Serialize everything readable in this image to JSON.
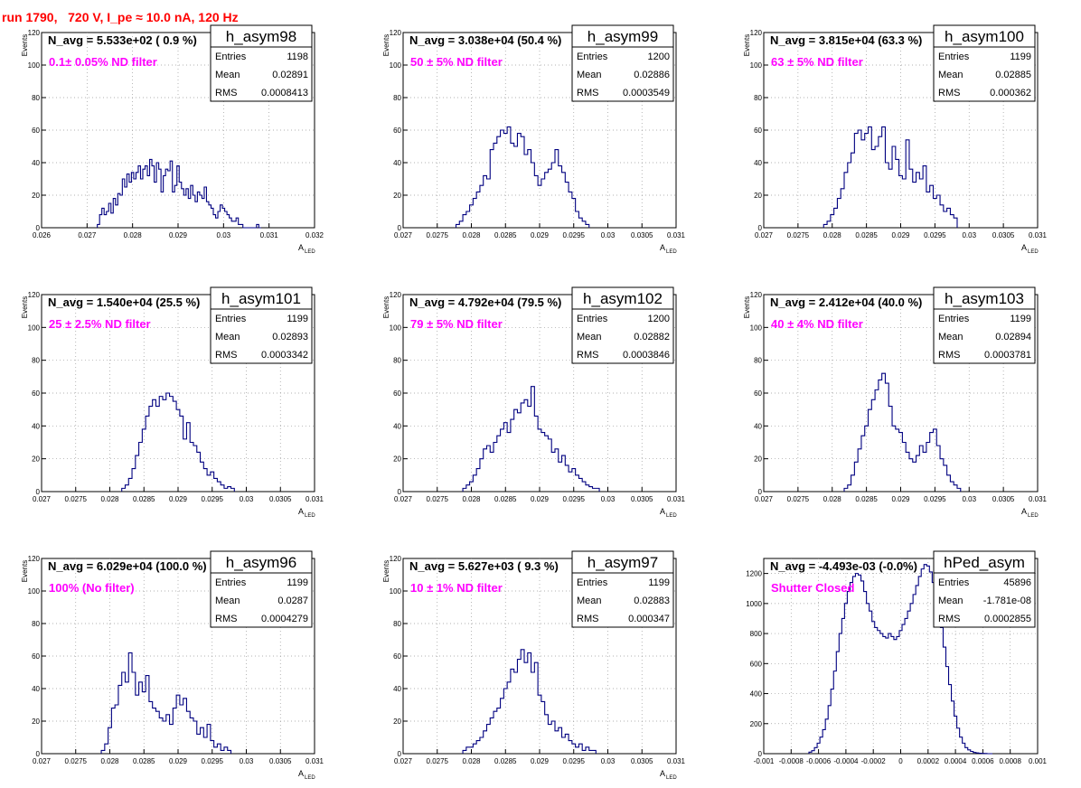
{
  "page_title": "run 1790,   720 V, I_pe ≈ 10.0 nA, 120 Hz",
  "colors": {
    "title": "#ff0000",
    "annotation": "#ff00ff",
    "histogram": "#000080",
    "grid": "#999999"
  },
  "chart_data": [
    {
      "type": "histogram",
      "name": "h_asym98",
      "nav": "N_avg = 5.533e+02 ( 0.9 %)",
      "filter": "0.1± 0.05% ND filter",
      "stats": {
        "entries": "1198",
        "mean": "0.02891",
        "rms": "0.0008413"
      },
      "xlabel": "A",
      "xlabel_sub": "LED",
      "ylabel": "Events",
      "xlim": [
        0.026,
        0.032
      ],
      "ylim": [
        0,
        120
      ],
      "xticks": [
        "0.026",
        "0.027",
        "0.028",
        "0.029",
        "0.03",
        "0.031",
        "0.032"
      ],
      "yticks": [
        "0",
        "20",
        "40",
        "60",
        "80",
        "100",
        "120"
      ],
      "x": [
        0.02725,
        0.0273,
        0.02735,
        0.0274,
        0.02745,
        0.0275,
        0.02755,
        0.0276,
        0.02765,
        0.0277,
        0.02775,
        0.0278,
        0.02785,
        0.0279,
        0.02795,
        0.028,
        0.02805,
        0.0281,
        0.02815,
        0.0282,
        0.02825,
        0.0283,
        0.02835,
        0.0284,
        0.02845,
        0.0285,
        0.02855,
        0.0286,
        0.02865,
        0.0287,
        0.02875,
        0.0288,
        0.02885,
        0.0289,
        0.02895,
        0.029,
        0.02905,
        0.0291,
        0.02915,
        0.0292,
        0.02925,
        0.0293,
        0.02935,
        0.0294,
        0.02945,
        0.0295,
        0.02955,
        0.0296,
        0.02965,
        0.0297,
        0.02975,
        0.0298,
        0.02985,
        0.0299,
        0.02995,
        0.03,
        0.03005,
        0.0301,
        0.03015,
        0.0302,
        0.03025,
        0.0303,
        0.03035,
        0.0304,
        0.03045,
        0.0305,
        0.03055,
        0.0306,
        0.03065,
        0.0307,
        0.03075,
        0.0308
      ],
      "values": [
        2,
        8,
        12,
        8,
        10,
        15,
        9,
        18,
        14,
        21,
        20,
        30,
        25,
        33,
        28,
        34,
        30,
        34,
        38,
        30,
        36,
        38,
        32,
        42,
        38,
        28,
        40,
        36,
        22,
        32,
        36,
        35,
        41,
        22,
        26,
        38,
        28,
        24,
        20,
        24,
        18,
        26,
        20,
        16,
        22,
        20,
        18,
        25,
        16,
        14,
        12,
        8,
        6,
        10,
        14,
        12,
        10,
        8,
        6,
        4,
        4,
        6,
        2,
        2,
        0,
        0,
        0,
        0,
        0,
        0,
        2,
        0
      ]
    },
    {
      "type": "histogram",
      "name": "h_asym99",
      "nav": "N_avg = 3.038e+04 (50.4 %)",
      "filter": " 50 ± 5% ND filter",
      "stats": {
        "entries": "1200",
        "mean": "0.02886",
        "rms": "0.0003549"
      },
      "xlabel": "A",
      "xlabel_sub": "LED",
      "ylabel": "Events",
      "xlim": [
        0.027,
        0.031
      ],
      "ylim": [
        0,
        120
      ],
      "xticks": [
        "0.027",
        "0.0275",
        "0.028",
        "0.0285",
        "0.029",
        "0.0295",
        "0.03",
        "0.0305",
        "0.031"
      ],
      "yticks": [
        "0",
        "20",
        "40",
        "60",
        "80",
        "100",
        "120"
      ],
      "x": [
        0.0278,
        0.02785,
        0.0279,
        0.02795,
        0.028,
        0.02805,
        0.0281,
        0.02815,
        0.0282,
        0.02825,
        0.0283,
        0.02835,
        0.0284,
        0.02845,
        0.0285,
        0.02855,
        0.0286,
        0.02865,
        0.0287,
        0.02875,
        0.0288,
        0.02885,
        0.0289,
        0.02895,
        0.029,
        0.02905,
        0.0291,
        0.02915,
        0.0292,
        0.02925,
        0.0293,
        0.02935,
        0.0294,
        0.02945,
        0.0295,
        0.02955,
        0.0296,
        0.02965,
        0.0297
      ],
      "values": [
        2,
        4,
        8,
        10,
        14,
        18,
        22,
        26,
        32,
        30,
        48,
        52,
        56,
        60,
        58,
        62,
        52,
        50,
        58,
        56,
        45,
        48,
        40,
        32,
        26,
        30,
        34,
        36,
        40,
        48,
        38,
        34,
        28,
        22,
        18,
        10,
        6,
        4,
        2
      ]
    },
    {
      "type": "histogram",
      "name": "h_asym100",
      "nav": "N_avg = 3.815e+04 (63.3 %)",
      "filter": " 63 ± 5% ND filter",
      "stats": {
        "entries": "1199",
        "mean": "0.02885",
        "rms": "0.000362"
      },
      "xlabel": "A",
      "xlabel_sub": "LED",
      "ylabel": "Events",
      "xlim": [
        0.027,
        0.031
      ],
      "ylim": [
        0,
        120
      ],
      "xticks": [
        "0.027",
        "0.0275",
        "0.028",
        "0.0285",
        "0.029",
        "0.0295",
        "0.03",
        "0.0305",
        "0.031"
      ],
      "yticks": [
        "0",
        "20",
        "40",
        "60",
        "80",
        "100",
        "120"
      ],
      "x": [
        0.0279,
        0.02795,
        0.028,
        0.02805,
        0.0281,
        0.02815,
        0.0282,
        0.02825,
        0.0283,
        0.02835,
        0.0284,
        0.02845,
        0.0285,
        0.02855,
        0.0286,
        0.02865,
        0.0287,
        0.02875,
        0.0288,
        0.02885,
        0.0289,
        0.02895,
        0.029,
        0.02905,
        0.0291,
        0.02915,
        0.0292,
        0.02925,
        0.0293,
        0.02935,
        0.0294,
        0.02945,
        0.0295,
        0.02955,
        0.0296,
        0.02965,
        0.0297,
        0.02975,
        0.0298
      ],
      "values": [
        2,
        4,
        8,
        12,
        18,
        24,
        34,
        40,
        46,
        58,
        60,
        54,
        58,
        62,
        48,
        50,
        56,
        62,
        40,
        36,
        50,
        42,
        32,
        30,
        54,
        36,
        28,
        34,
        30,
        38,
        22,
        26,
        18,
        20,
        14,
        10,
        12,
        8,
        6
      ]
    },
    {
      "type": "histogram",
      "name": "h_asym101",
      "nav": "N_avg = 1.540e+04 (25.5 %)",
      "filter": " 25 ± 2.5% ND filter",
      "stats": {
        "entries": "1199",
        "mean": "0.02893",
        "rms": "0.0003342"
      },
      "xlabel": "A",
      "xlabel_sub": "LED",
      "ylabel": "Events",
      "xlim": [
        0.027,
        0.031
      ],
      "ylim": [
        0,
        120
      ],
      "xticks": [
        "0.027",
        "0.0275",
        "0.028",
        "0.0285",
        "0.029",
        "0.0295",
        "0.03",
        "0.0305",
        "0.031"
      ],
      "yticks": [
        "0",
        "20",
        "40",
        "60",
        "80",
        "100",
        "120"
      ],
      "x": [
        0.0282,
        0.02825,
        0.0283,
        0.02835,
        0.0284,
        0.02845,
        0.0285,
        0.02855,
        0.0286,
        0.02865,
        0.0287,
        0.02875,
        0.0288,
        0.02885,
        0.0289,
        0.02895,
        0.029,
        0.02905,
        0.0291,
        0.02915,
        0.0292,
        0.02925,
        0.0293,
        0.02935,
        0.0294,
        0.02945,
        0.0295,
        0.02955,
        0.0296,
        0.02965,
        0.0297,
        0.02975,
        0.0298
      ],
      "values": [
        2,
        4,
        8,
        14,
        22,
        30,
        38,
        46,
        52,
        56,
        52,
        58,
        56,
        60,
        58,
        55,
        50,
        46,
        32,
        42,
        30,
        28,
        24,
        18,
        14,
        10,
        12,
        8,
        6,
        4,
        2,
        3,
        2
      ]
    },
    {
      "type": "histogram",
      "name": "h_asym102",
      "nav": "N_avg = 4.792e+04 (79.5 %)",
      "filter": " 79 ± 5% ND filter",
      "stats": {
        "entries": "1200",
        "mean": "0.02882",
        "rms": "0.0003846"
      },
      "xlabel": "A",
      "xlabel_sub": "LED",
      "ylabel": "Events",
      "xlim": [
        0.027,
        0.031
      ],
      "ylim": [
        0,
        120
      ],
      "xticks": [
        "0.027",
        "0.0275",
        "0.028",
        "0.0285",
        "0.029",
        "0.0295",
        "0.03",
        "0.0305",
        "0.031"
      ],
      "yticks": [
        "0",
        "20",
        "40",
        "60",
        "80",
        "100",
        "120"
      ],
      "x": [
        0.0279,
        0.02795,
        0.028,
        0.02805,
        0.0281,
        0.02815,
        0.0282,
        0.02825,
        0.0283,
        0.02835,
        0.0284,
        0.02845,
        0.0285,
        0.02855,
        0.0286,
        0.02865,
        0.0287,
        0.02875,
        0.0288,
        0.02885,
        0.0289,
        0.02895,
        0.029,
        0.02905,
        0.0291,
        0.02915,
        0.0292,
        0.02925,
        0.0293,
        0.02935,
        0.0294,
        0.02945,
        0.0295,
        0.02955,
        0.0296,
        0.02965,
        0.0297,
        0.02975,
        0.0298,
        0.02985
      ],
      "values": [
        2,
        4,
        6,
        10,
        14,
        20,
        26,
        28,
        24,
        30,
        34,
        38,
        42,
        36,
        44,
        50,
        48,
        54,
        56,
        52,
        64,
        46,
        38,
        36,
        34,
        32,
        24,
        26,
        18,
        22,
        16,
        12,
        14,
        10,
        8,
        6,
        4,
        3,
        2,
        2
      ]
    },
    {
      "type": "histogram",
      "name": "h_asym103",
      "nav": "N_avg = 2.412e+04 (40.0 %)",
      "filter": " 40 ± 4% ND filter",
      "stats": {
        "entries": "1199",
        "mean": "0.02894",
        "rms": "0.0003781"
      },
      "xlabel": "A",
      "xlabel_sub": "LED",
      "ylabel": "Events",
      "xlim": [
        0.027,
        0.031
      ],
      "ylim": [
        0,
        120
      ],
      "xticks": [
        "0.027",
        "0.0275",
        "0.028",
        "0.0285",
        "0.029",
        "0.0295",
        "0.03",
        "0.0305",
        "0.031"
      ],
      "yticks": [
        "0",
        "20",
        "40",
        "60",
        "80",
        "100",
        "120"
      ],
      "x": [
        0.0282,
        0.02825,
        0.0283,
        0.02835,
        0.0284,
        0.02845,
        0.0285,
        0.02855,
        0.0286,
        0.02865,
        0.0287,
        0.02875,
        0.0288,
        0.02885,
        0.0289,
        0.02895,
        0.029,
        0.02905,
        0.0291,
        0.02915,
        0.0292,
        0.02925,
        0.0293,
        0.02935,
        0.0294,
        0.02945,
        0.0295,
        0.02955,
        0.0296,
        0.02965,
        0.0297,
        0.02975,
        0.0298,
        0.02985
      ],
      "values": [
        2,
        4,
        10,
        18,
        26,
        34,
        40,
        50,
        56,
        62,
        68,
        72,
        66,
        52,
        40,
        38,
        36,
        30,
        24,
        20,
        18,
        22,
        28,
        24,
        30,
        36,
        38,
        28,
        20,
        16,
        10,
        6,
        4,
        2
      ]
    },
    {
      "type": "histogram",
      "name": "h_asym96",
      "nav": "N_avg = 6.029e+04 (100.0 %)",
      "filter": " 100% (No filter)",
      "stats": {
        "entries": "1199",
        "mean": "0.0287",
        "rms": "0.0004279"
      },
      "xlabel": "A",
      "xlabel_sub": "LED",
      "ylabel": "Events",
      "xlim": [
        0.027,
        0.031
      ],
      "ylim": [
        0,
        120
      ],
      "xticks": [
        "0.027",
        "0.0275",
        "0.028",
        "0.0285",
        "0.029",
        "0.0295",
        "0.03",
        "0.0305",
        "0.031"
      ],
      "yticks": [
        "0",
        "20",
        "40",
        "60",
        "80",
        "100",
        "120"
      ],
      "x": [
        0.0279,
        0.02795,
        0.028,
        0.02805,
        0.0281,
        0.02815,
        0.0282,
        0.02825,
        0.0283,
        0.02835,
        0.0284,
        0.02845,
        0.0285,
        0.02855,
        0.0286,
        0.02865,
        0.0287,
        0.02875,
        0.0288,
        0.02885,
        0.0289,
        0.02895,
        0.029,
        0.02905,
        0.0291,
        0.02915,
        0.0292,
        0.02925,
        0.0293,
        0.02935,
        0.0294,
        0.02945,
        0.0295,
        0.02955,
        0.0296,
        0.02965,
        0.0297,
        0.02975
      ],
      "values": [
        2,
        6,
        16,
        28,
        30,
        42,
        50,
        44,
        62,
        50,
        36,
        44,
        38,
        48,
        32,
        28,
        26,
        22,
        20,
        24,
        18,
        28,
        36,
        30,
        34,
        26,
        22,
        20,
        12,
        16,
        10,
        18,
        8,
        4,
        6,
        2,
        4,
        2
      ]
    },
    {
      "type": "histogram",
      "name": "h_asym97",
      "nav": "N_avg = 5.627e+03 ( 9.3 %)",
      "filter": "10 ± 1% ND filter",
      "stats": {
        "entries": "1199",
        "mean": "0.02883",
        "rms": "0.000347"
      },
      "xlabel": "A",
      "xlabel_sub": "LED",
      "ylabel": "Events",
      "xlim": [
        0.027,
        0.031
      ],
      "ylim": [
        0,
        120
      ],
      "xticks": [
        "0.027",
        "0.0275",
        "0.028",
        "0.0285",
        "0.029",
        "0.0295",
        "0.03",
        "0.0305",
        "0.031"
      ],
      "yticks": [
        "0",
        "20",
        "40",
        "60",
        "80",
        "100",
        "120"
      ],
      "x": [
        0.0279,
        0.02795,
        0.028,
        0.02805,
        0.0281,
        0.02815,
        0.0282,
        0.02825,
        0.0283,
        0.02835,
        0.0284,
        0.02845,
        0.0285,
        0.02855,
        0.0286,
        0.02865,
        0.0287,
        0.02875,
        0.0288,
        0.02885,
        0.0289,
        0.02895,
        0.029,
        0.02905,
        0.0291,
        0.02915,
        0.0292,
        0.02925,
        0.0293,
        0.02935,
        0.0294,
        0.02945,
        0.0295,
        0.02955,
        0.0296,
        0.02965,
        0.0297,
        0.02975,
        0.0298
      ],
      "values": [
        2,
        4,
        4,
        6,
        8,
        10,
        14,
        18,
        22,
        26,
        28,
        34,
        40,
        44,
        52,
        50,
        58,
        64,
        56,
        62,
        50,
        56,
        36,
        32,
        24,
        18,
        20,
        14,
        16,
        10,
        12,
        8,
        6,
        4,
        6,
        2,
        4,
        2,
        2
      ]
    },
    {
      "type": "histogram",
      "name": "hPed_asym",
      "nav": "N_avg = -4.493e-03 (-0.0%)",
      "filter": " Shutter Closed",
      "stats": {
        "entries": "45896",
        "mean": "-1.781e-08",
        "rms": "0.0002855"
      },
      "xlabel": "",
      "xlabel_sub": "",
      "ylabel": "",
      "xlim": [
        -0.001,
        0.001
      ],
      "ylim": [
        0,
        1300
      ],
      "xticks": [
        "-0.001",
        "-0.0008",
        "-0.0006",
        "-0.0004",
        "-0.0002",
        "0",
        "0.0002",
        "0.0004",
        "0.0006",
        "0.0008",
        "0.001"
      ],
      "yticks": [
        "0",
        "200",
        "400",
        "600",
        "800",
        "1000",
        "1200"
      ],
      "x": [
        -0.00066,
        -0.00064,
        -0.00062,
        -0.0006,
        -0.00058,
        -0.00056,
        -0.00054,
        -0.00052,
        -0.0005,
        -0.00048,
        -0.00046,
        -0.00044,
        -0.00042,
        -0.0004,
        -0.00038,
        -0.00036,
        -0.00034,
        -0.00032,
        -0.0003,
        -0.00028,
        -0.00026,
        -0.00024,
        -0.00022,
        -0.0002,
        -0.00018,
        -0.00016,
        -0.00014,
        -0.00012,
        -0.0001,
        -8e-05,
        -6e-05,
        -4e-05,
        -2e-05,
        0,
        2e-05,
        4e-05,
        6e-05,
        8e-05,
        0.0001,
        0.00012,
        0.00014,
        0.00016,
        0.00018,
        0.0002,
        0.00022,
        0.00024,
        0.00026,
        0.00028,
        0.0003,
        0.00032,
        0.00034,
        0.00036,
        0.00038,
        0.0004,
        0.00042,
        0.00044,
        0.00046,
        0.00048,
        0.0005,
        0.00052,
        0.00054,
        0.00056,
        0.00058,
        0.0006,
        0.00062,
        0.00064,
        0.00066
      ],
      "values": [
        10,
        20,
        40,
        70,
        110,
        160,
        230,
        320,
        430,
        550,
        680,
        800,
        900,
        1000,
        1080,
        1140,
        1180,
        1200,
        1190,
        1150,
        1080,
        1000,
        950,
        880,
        840,
        820,
        800,
        780,
        770,
        800,
        780,
        760,
        780,
        820,
        860,
        900,
        950,
        1000,
        1060,
        1120,
        1180,
        1230,
        1260,
        1250,
        1210,
        1140,
        1060,
        960,
        840,
        710,
        580,
        460,
        350,
        250,
        170,
        110,
        70,
        40,
        25,
        15,
        8,
        5,
        3,
        2,
        1,
        0,
        0
      ]
    }
  ]
}
